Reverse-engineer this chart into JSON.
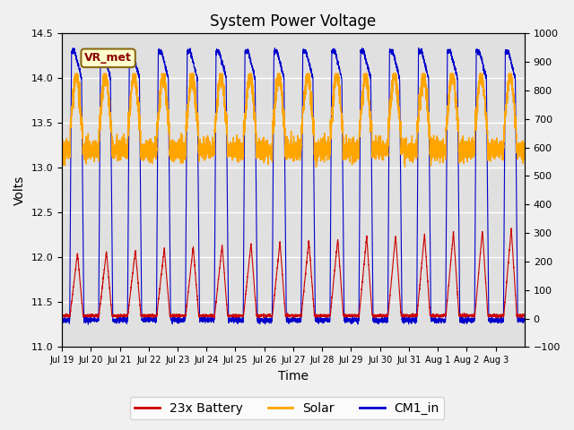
{
  "title": "System Power Voltage",
  "xlabel": "Time",
  "ylabel_left": "Volts",
  "ylim_left": [
    11.0,
    14.5
  ],
  "ylim_right": [
    -100,
    1000
  ],
  "yticks_left": [
    11.0,
    11.5,
    12.0,
    12.5,
    13.0,
    13.5,
    14.0,
    14.5
  ],
  "yticks_right": [
    -100,
    0,
    100,
    200,
    300,
    400,
    500,
    600,
    700,
    800,
    900,
    1000
  ],
  "num_days": 16,
  "x_tick_labels": [
    "Jul 19",
    "Jul 20",
    "Jul 21",
    "Jul 22",
    "Jul 23",
    "Jul 24",
    "Jul 25",
    "Jul 26",
    "Jul 27",
    "Jul 28",
    "Jul 29",
    "Jul 30",
    "Jul 31",
    "Aug 1",
    "Aug 2",
    "Aug 3"
  ],
  "color_battery": "#cc0000",
  "color_solar": "#ffa500",
  "color_cm1": "#0000cc",
  "legend_labels": [
    "23x Battery",
    "Solar",
    "CM1_in"
  ],
  "annotation_text": "VR_met",
  "title_fontsize": 12,
  "axis_fontsize": 10,
  "legend_fontsize": 10
}
